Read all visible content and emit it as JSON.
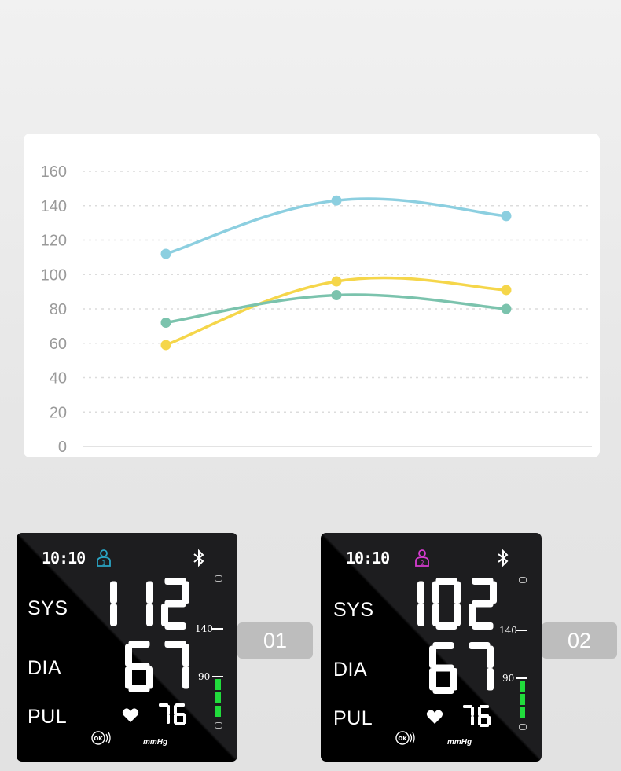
{
  "chart_data": {
    "type": "line",
    "x": [
      1,
      2,
      3
    ],
    "ylim": [
      0,
      160
    ],
    "yticks": [
      "160",
      "140",
      "120",
      "100",
      "80",
      "60",
      "40",
      "20",
      "0"
    ],
    "grid": true,
    "series": [
      {
        "color": "#8ccfe0",
        "values": [
          112,
          143,
          134
        ]
      },
      {
        "color": "#f5d64a",
        "values": [
          59,
          96,
          91
        ]
      },
      {
        "color": "#7bc3ad",
        "values": [
          72,
          88,
          80
        ]
      }
    ]
  },
  "devices": [
    {
      "time": "10:10",
      "user_icon_color": "#2aa4c4",
      "sys_label": "SYS",
      "dia_label": "DIA",
      "pul_label": "PUL",
      "sys": "112",
      "dia": "67",
      "pul": "76",
      "scale_high": "140",
      "scale_low": "90",
      "unit": "mmHg",
      "tag": "01"
    },
    {
      "time": "10:10",
      "user_icon_color": "#d63bd0",
      "sys_label": "SYS",
      "dia_label": "DIA",
      "pul_label": "PUL",
      "sys": "102",
      "dia": "67",
      "pul": "76",
      "scale_high": "140",
      "scale_low": "90",
      "unit": "mmHg",
      "tag": "02"
    }
  ],
  "icons": [
    "user-icon",
    "bluetooth-icon",
    "heart-icon",
    "ok-icon"
  ]
}
